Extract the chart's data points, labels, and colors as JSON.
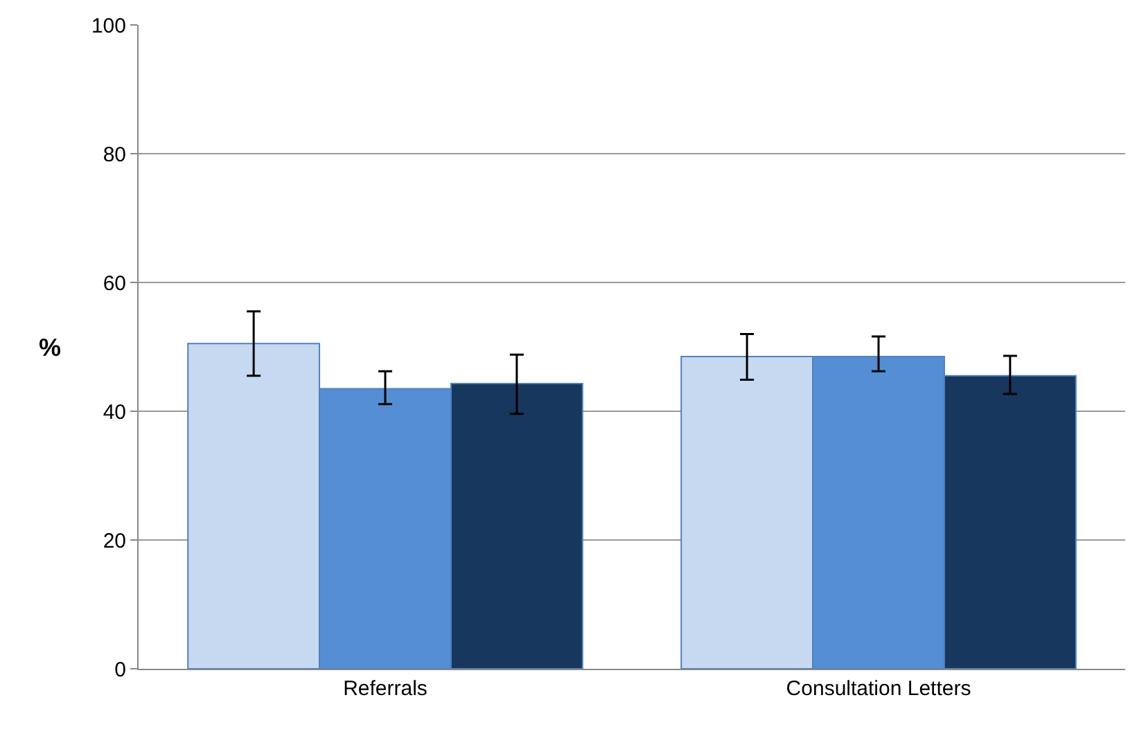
{
  "chart_data": {
    "type": "bar",
    "ylabel": "%",
    "categories": [
      "Referrals",
      "Consultation Letters"
    ],
    "series": [
      {
        "color": "#c6d9f1",
        "values": [
          50.5,
          48.5
        ],
        "errors": [
          [
            45.5,
            55.5
          ],
          [
            44.9,
            52.0
          ]
        ]
      },
      {
        "color": "#558ed5",
        "values": [
          43.5,
          48.5
        ],
        "errors": [
          [
            41.1,
            46.2
          ],
          [
            46.2,
            51.6
          ]
        ]
      },
      {
        "color": "#17375e",
        "values": [
          44.3,
          45.5
        ],
        "errors": [
          [
            39.6,
            48.8
          ],
          [
            42.7,
            48.6
          ]
        ]
      }
    ],
    "ylim": [
      0,
      100
    ],
    "yticks": [
      0,
      20,
      40,
      60,
      80,
      100
    ],
    "grid": "y"
  }
}
